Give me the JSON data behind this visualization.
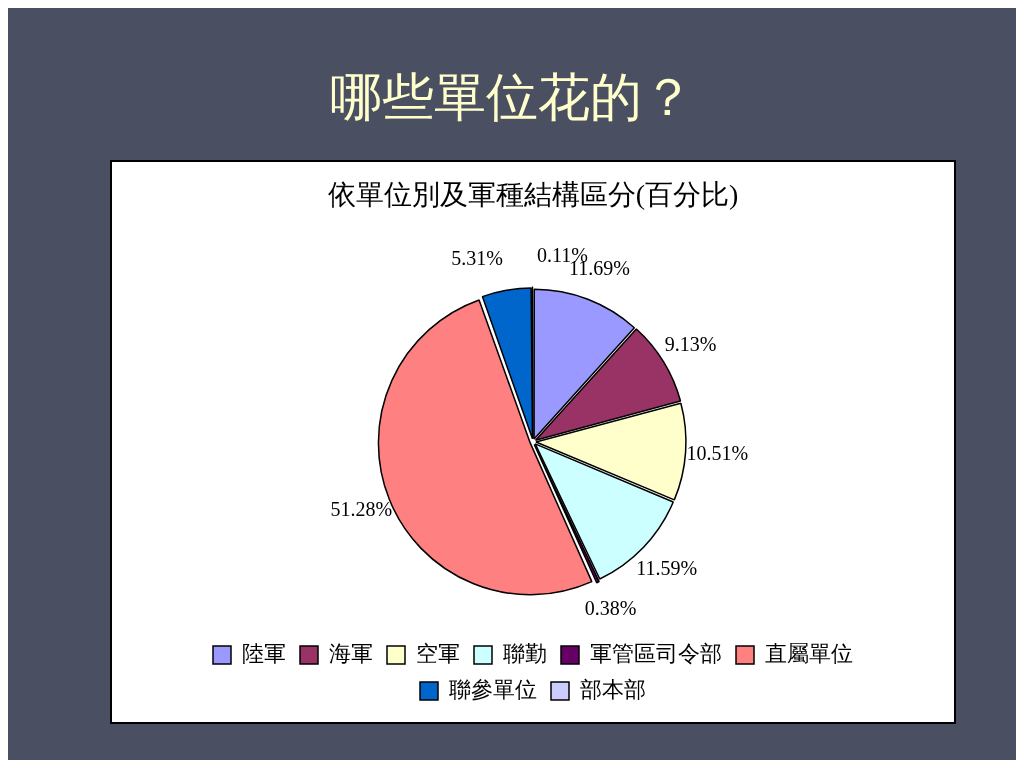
{
  "chart_data": {
    "type": "pie",
    "title": "哪些單位花的？",
    "subtitle": "依單位別及軍種結構區分(百分比)",
    "categories": [
      "陸軍",
      "海軍",
      "空軍",
      "聯勤",
      "軍管區司令部",
      "直屬單位",
      "聯參單位",
      "部本部"
    ],
    "values": [
      11.69,
      9.13,
      10.51,
      11.59,
      0.38,
      51.28,
      5.31,
      0.11
    ],
    "colors": [
      "#9999ff",
      "#993366",
      "#ffffcc",
      "#ccffff",
      "#660066",
      "#ff8080",
      "#0066cc",
      "#ccccff"
    ],
    "value_labels": [
      "11.69%",
      "9.13%",
      "10.51%",
      "11.59%",
      "0.38%",
      "51.28%",
      "5.31%",
      "0.11%"
    ],
    "legend": "bottom"
  }
}
